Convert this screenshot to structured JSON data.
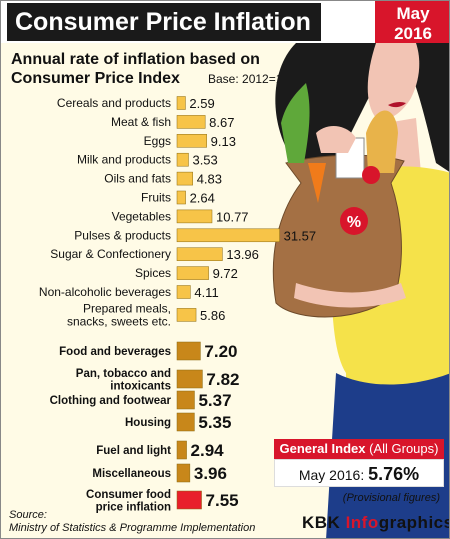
{
  "header": {
    "title": "Consumer Price Inflation",
    "date_month": "May",
    "date_year": "2016"
  },
  "subtitle_line1": "Annual rate of inflation based on",
  "subtitle_line2": "Consumer Price Index",
  "base_note": "Base: 2012=100",
  "general_index": {
    "label": "General Index",
    "label_sub": "(All Groups)",
    "period": "May 2016:",
    "value": "5.76%",
    "note": "(Provisional figures)"
  },
  "source_label": "Source:",
  "source_text": "Ministry of Statistics & Programme Implementation",
  "brand_main": "KBK ",
  "brand_accent": "Info",
  "brand_tail": "graphics",
  "colors": {
    "title_bg": "#1a1a1a",
    "accent_red": "#d8152b",
    "bar_light": "#f7c448",
    "bar_dark": "#c8871a",
    "bar_highlight": "#e8202b"
  },
  "chart_data": {
    "type": "bar",
    "orientation": "horizontal",
    "title": "Annual rate of inflation based on Consumer Price Index",
    "categories": [
      "Cereals and products",
      "Meat & fish",
      "Eggs",
      "Milk and products",
      "Oils and fats",
      "Fruits",
      "Vegetables",
      "Pulses & products",
      "Sugar & Confectionery",
      "Spices",
      "Non-alcoholic beverages",
      "Prepared meals, snacks, sweets etc.",
      "Food and beverages",
      "Pan, tobacco and intoxicants",
      "Clothing and footwear",
      "Housing",
      "Fuel and light",
      "Miscellaneous",
      "Consumer food price inflation"
    ],
    "values": [
      2.59,
      8.67,
      9.13,
      3.53,
      4.83,
      2.64,
      10.77,
      31.57,
      13.96,
      9.72,
      4.11,
      5.86,
      7.2,
      7.82,
      5.37,
      5.35,
      2.94,
      3.96,
      7.55
    ],
    "value_labels": [
      "2.59",
      "8.67",
      "9.13",
      "3.53",
      "4.83",
      "2.64",
      "10.77",
      "31.57",
      "13.96",
      "9.72",
      "4.11",
      "5.86",
      "7.20",
      "7.82",
      "5.37",
      "5.35",
      "2.94",
      "3.96",
      "7.55"
    ],
    "groups": [
      "sub",
      "sub",
      "sub",
      "sub",
      "sub",
      "sub",
      "sub",
      "sub",
      "sub",
      "sub",
      "sub",
      "sub",
      "main",
      "main",
      "main",
      "main",
      "main",
      "main",
      "food"
    ],
    "xlim": [
      0,
      32
    ],
    "grid": false
  }
}
